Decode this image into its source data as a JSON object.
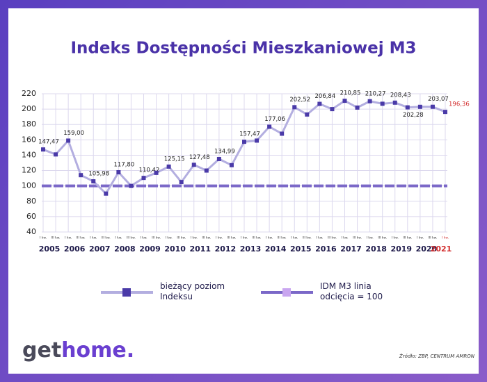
{
  "chart_data": {
    "type": "line",
    "title": "Indeks Dostępności Mieszkaniowej M3",
    "categories": [
      "I kw.",
      "III kw.",
      "I kw.",
      "III kw.",
      "I kw.",
      "III kw.",
      "I kw.",
      "III kw.",
      "I kw.",
      "III kw.",
      "I kw.",
      "III kw.",
      "I kw.",
      "III kw.",
      "I kw.",
      "III kw.",
      "I kw.",
      "III kw.",
      "I kw.",
      "III kw.",
      "I kw.",
      "III kw.",
      "I kw.",
      "III kw.",
      "I kw.",
      "III kw.",
      "I kw.",
      "III kw.",
      "I kw.",
      "III kw.",
      "I kw.",
      "III kw.",
      "I kw."
    ],
    "years": [
      "2005",
      "2006",
      "2007",
      "2008",
      "2009",
      "2010",
      "2011",
      "2012",
      "2013",
      "2014",
      "2015",
      "2016",
      "2017",
      "2018",
      "2019",
      "2020",
      "2021"
    ],
    "series": [
      {
        "name": "bieżący poziom Indeksu",
        "color": "#b3aee0",
        "marker_color": "#4a3aa8",
        "values": [
          147.47,
          141,
          159.0,
          114,
          105.98,
          90,
          117.8,
          100,
          110.42,
          117,
          125.15,
          105,
          127.48,
          120,
          134.99,
          127,
          157.47,
          159,
          177.06,
          168,
          202.52,
          193,
          206.84,
          200,
          210.85,
          202,
          210.27,
          207,
          208.43,
          202.28,
          203,
          203.07,
          196.36
        ],
        "value_labels": [
          "147,47",
          null,
          "159,00",
          null,
          "105,98",
          null,
          "117,80",
          null,
          "110,42",
          null,
          "125,15",
          null,
          "127,48",
          null,
          "134,99",
          null,
          "157,47",
          null,
          "177,06",
          null,
          "202,52",
          null,
          "206,84",
          null,
          "210,85",
          null,
          "210,27",
          null,
          "208,43",
          "202,28",
          null,
          "203,07",
          "196,36"
        ]
      }
    ],
    "threshold": {
      "name": "IDM M3 linia odcięcia = 100",
      "value": 100,
      "color": "#7b68c8",
      "marker_color": "#c9a6f0"
    },
    "highlight_color": "#d32f2f",
    "ylim": [
      40,
      220
    ],
    "yticks": [
      40,
      60,
      80,
      100,
      120,
      140,
      160,
      180,
      200,
      220
    ],
    "grid": true
  },
  "source": "Źródło: ZBP, CENTRUM AMRON",
  "logo": {
    "left": "get",
    "right": "home."
  }
}
